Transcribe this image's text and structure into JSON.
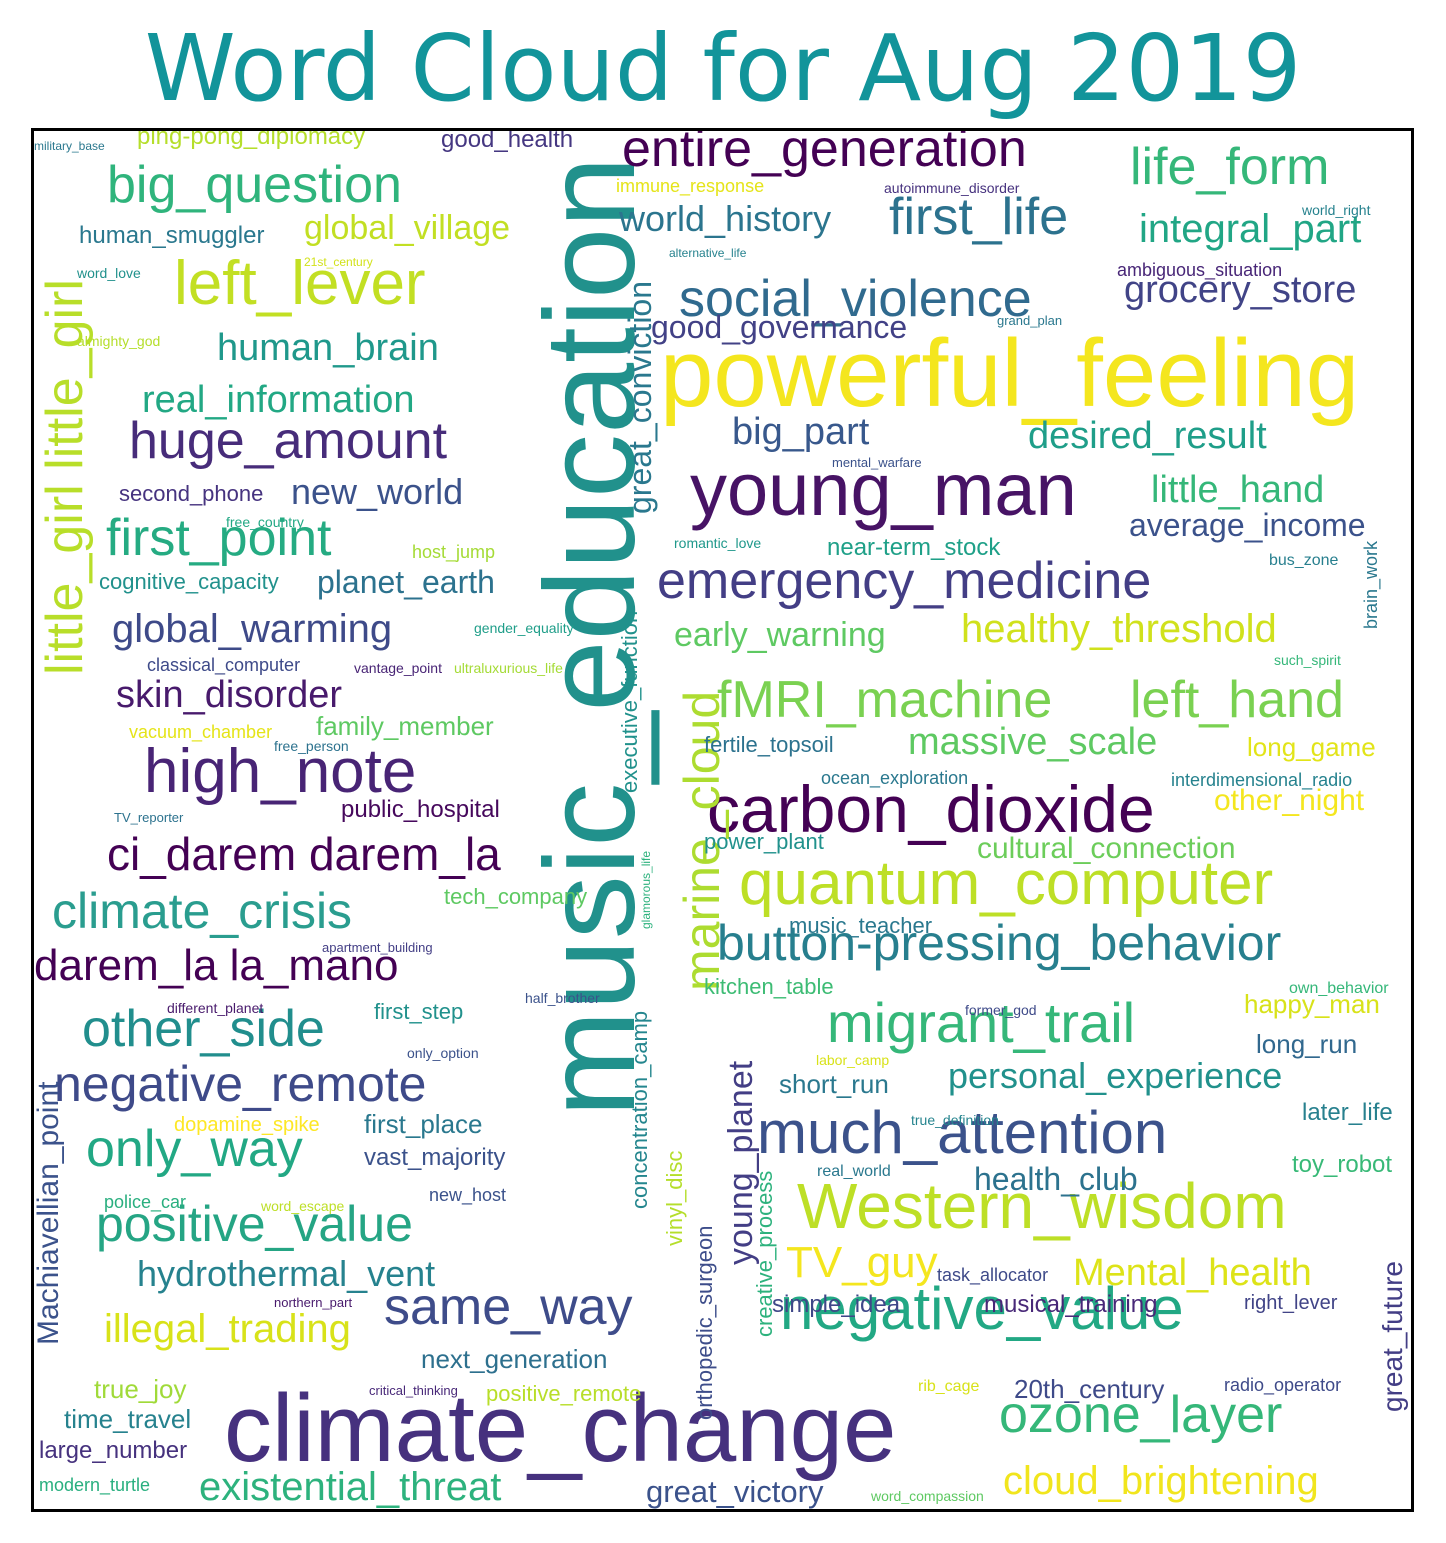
{
  "title": "Word Cloud for Aug 2019",
  "words": [
    {
      "text": "music_education",
      "color": "#21918c"
    },
    {
      "text": "climate_change",
      "color": "#46317e"
    },
    {
      "text": "powerful_feeling",
      "color": "#f4e61e"
    },
    {
      "text": "young_man",
      "color": "#471365"
    },
    {
      "text": "carbon_dioxide",
      "color": "#440154"
    },
    {
      "text": "quantum_computer",
      "color": "#bddf26"
    },
    {
      "text": "Western_wisdom",
      "color": "#bddf26"
    },
    {
      "text": "much_attention",
      "color": "#3b528b"
    },
    {
      "text": "negative_value",
      "color": "#22a884"
    },
    {
      "text": "migrant_trail",
      "color": "#35b779"
    },
    {
      "text": "button-pressing_behavior",
      "color": "#277f8e"
    },
    {
      "text": "emergency_medicine",
      "color": "#433e85"
    },
    {
      "text": "fMRI_machine",
      "color": "#7ad151"
    },
    {
      "text": "left_hand",
      "color": "#7ad151"
    },
    {
      "text": "entire_generation",
      "color": "#440154"
    },
    {
      "text": "social_violence",
      "color": "#306a8e"
    },
    {
      "text": "first_life",
      "color": "#2c728e"
    },
    {
      "text": "life_form",
      "color": "#35b779"
    },
    {
      "text": "left_lever",
      "color": "#c2df23"
    },
    {
      "text": "big_question",
      "color": "#2fb47c"
    },
    {
      "text": "huge_amount",
      "color": "#472c7a"
    },
    {
      "text": "high_note",
      "color": "#482475"
    },
    {
      "text": "first_point",
      "color": "#25ab82"
    },
    {
      "text": "little_girl little_girl",
      "color": "#b8de29"
    },
    {
      "text": "ci_darem darem_la",
      "color": "#440154"
    },
    {
      "text": "climate_crisis",
      "color": "#2a9d8f"
    },
    {
      "text": "darem_la la_mano",
      "color": "#440154"
    },
    {
      "text": "other_side",
      "color": "#218e8d"
    },
    {
      "text": "negative_remote",
      "color": "#3e4a89"
    },
    {
      "text": "only_way",
      "color": "#22a884"
    },
    {
      "text": "positive_value",
      "color": "#25a584"
    },
    {
      "text": "same_way",
      "color": "#3e4c8a"
    },
    {
      "text": "ozone_layer",
      "color": "#35b779"
    },
    {
      "text": "cloud_brightening",
      "color": "#f1e51d"
    },
    {
      "text": "marine_cloud",
      "color": "#addc30"
    },
    {
      "text": "young_planet",
      "color": "#433e85"
    },
    {
      "text": "existential_threat",
      "color": "#2db27d"
    },
    {
      "text": "illegal_trading",
      "color": "#d8e219"
    },
    {
      "text": "hydrothermal_vent",
      "color": "#26828e"
    },
    {
      "text": "Mental_health",
      "color": "#dde318"
    },
    {
      "text": "TV_guy",
      "color": "#f4e61e"
    },
    {
      "text": "healthy_threshold",
      "color": "#d0e11c"
    },
    {
      "text": "massive_scale",
      "color": "#5ec962"
    },
    {
      "text": "personal_experience",
      "color": "#21918c"
    },
    {
      "text": "desired_result",
      "color": "#1f9e89"
    },
    {
      "text": "little_hand",
      "color": "#35b779"
    },
    {
      "text": "average_income",
      "color": "#3b528b"
    },
    {
      "text": "grocery_store",
      "color": "#414487"
    },
    {
      "text": "integral_part",
      "color": "#21a685"
    },
    {
      "text": "world_history",
      "color": "#2b758e"
    },
    {
      "text": "good_governance",
      "color": "#424186"
    },
    {
      "text": "big_part",
      "color": "#38588c"
    },
    {
      "text": "early_warning",
      "color": "#5ec962"
    },
    {
      "text": "great_conviction",
      "color": "#2a788e"
    },
    {
      "text": "global_warming",
      "color": "#3e4a89"
    },
    {
      "text": "skin_disorder",
      "color": "#481a6c"
    },
    {
      "text": "human_brain",
      "color": "#1f988b"
    },
    {
      "text": "real_information",
      "color": "#22a884"
    },
    {
      "text": "new_world",
      "color": "#3b528b"
    },
    {
      "text": "planet_earth",
      "color": "#2c728e"
    },
    {
      "text": "global_village",
      "color": "#c2df23"
    },
    {
      "text": "human_smuggler",
      "color": "#2a788e"
    },
    {
      "text": "good_health",
      "color": "#453781"
    },
    {
      "text": "ping-pong_diplomacy",
      "color": "#b5de2b"
    },
    {
      "text": "military_base",
      "color": "#2a788e"
    },
    {
      "text": "great_future",
      "color": "#433e85"
    },
    {
      "text": "Machiavellian_point",
      "color": "#3b528b"
    },
    {
      "text": "cultural_connection",
      "color": "#6ccd5a"
    },
    {
      "text": "other_night",
      "color": "#f4e61e"
    },
    {
      "text": "long_game",
      "color": "#e2e418"
    },
    {
      "text": "happy_man",
      "color": "#d8e219"
    },
    {
      "text": "long_run",
      "color": "#31688e"
    },
    {
      "text": "later_life",
      "color": "#27808e"
    },
    {
      "text": "toy_robot",
      "color": "#38b977"
    },
    {
      "text": "health_club",
      "color": "#2c728e"
    },
    {
      "text": "short_run",
      "color": "#2a788e"
    },
    {
      "text": "next_generation",
      "color": "#2d708e"
    },
    {
      "text": "first_place",
      "color": "#2a788e"
    },
    {
      "text": "vast_majority",
      "color": "#3b528b"
    },
    {
      "text": "true_joy",
      "color": "#a0da39"
    },
    {
      "text": "time_travel",
      "color": "#26828e"
    },
    {
      "text": "large_number",
      "color": "#46327e"
    },
    {
      "text": "modern_turtle",
      "color": "#29af7f"
    },
    {
      "text": "great_victory",
      "color": "#3b528b"
    },
    {
      "text": "20th_century",
      "color": "#3e4a89"
    },
    {
      "text": "musical_training",
      "color": "#482878"
    },
    {
      "text": "simple_idea",
      "color": "#3f4788"
    },
    {
      "text": "right_lever",
      "color": "#414487"
    },
    {
      "text": "positive_remote",
      "color": "#b8de29"
    },
    {
      "text": "creative_process",
      "color": "#2db27d"
    },
    {
      "text": "orthopedic_surgeon",
      "color": "#3d4d8a"
    },
    {
      "text": "concentration_camp",
      "color": "#24868e"
    },
    {
      "text": "vinyl_disc",
      "color": "#b5de2b"
    },
    {
      "text": "executive_function",
      "color": "#21918c"
    },
    {
      "text": "family_member",
      "color": "#5ec962"
    },
    {
      "text": "public_hospital",
      "color": "#46085c"
    },
    {
      "text": "second_phone",
      "color": "#46337f"
    },
    {
      "text": "cognitive_capacity",
      "color": "#21918c"
    },
    {
      "text": "tech_company",
      "color": "#5ec962"
    },
    {
      "text": "first_step",
      "color": "#21918c"
    },
    {
      "text": "fertile_topsoil",
      "color": "#2c728e"
    },
    {
      "text": "power_plant",
      "color": "#21918c"
    },
    {
      "text": "kitchen_table",
      "color": "#3dbc74"
    },
    {
      "text": "music_teacher",
      "color": "#2a788e"
    },
    {
      "text": "near-term_stock",
      "color": "#1fa088"
    },
    {
      "text": "dopamine_spike",
      "color": "#fde725"
    },
    {
      "text": "brain_work",
      "color": "#2a788e"
    },
    {
      "text": "immune_response",
      "color": "#e5e419"
    },
    {
      "text": "autoimmune_disorder",
      "color": "#46317e"
    },
    {
      "text": "alternative_life",
      "color": "#26828e"
    },
    {
      "text": "world_right",
      "color": "#26828e"
    },
    {
      "text": "ambiguous_situation",
      "color": "#482677"
    },
    {
      "text": "21st_century",
      "color": "#d2e21b"
    },
    {
      "text": "word_love",
      "color": "#21918c"
    },
    {
      "text": "almighty_god",
      "color": "#b5de2b"
    },
    {
      "text": "grand_plan",
      "color": "#2a788e"
    },
    {
      "text": "mental_warfare",
      "color": "#3b528b"
    },
    {
      "text": "free_country",
      "color": "#22a884"
    },
    {
      "text": "host_jump",
      "color": "#a5db36"
    },
    {
      "text": "romantic_love",
      "color": "#1f988b"
    },
    {
      "text": "bus_zone",
      "color": "#277f8e"
    },
    {
      "text": "gender_equality",
      "color": "#1f9e89"
    },
    {
      "text": "classical_computer",
      "color": "#3e4a89"
    },
    {
      "text": "vantage_point",
      "color": "#482475"
    },
    {
      "text": "ultraluxurious_life",
      "color": "#a5db36"
    },
    {
      "text": "such_spirit",
      "color": "#35b779"
    },
    {
      "text": "vacuum_chamber",
      "color": "#e5e419"
    },
    {
      "text": "free_person",
      "color": "#2c728e"
    },
    {
      "text": "ocean_exploration",
      "color": "#2a788e"
    },
    {
      "text": "interdimensional_radio",
      "color": "#26828e"
    },
    {
      "text": "TV_reporter",
      "color": "#2c728e"
    },
    {
      "text": "glamorous_life",
      "color": "#2db27d"
    },
    {
      "text": "apartment_building",
      "color": "#433e85"
    },
    {
      "text": "half_brother",
      "color": "#3b528b"
    },
    {
      "text": "former_god",
      "color": "#3e4a89"
    },
    {
      "text": "own_behavior",
      "color": "#35b779"
    },
    {
      "text": "different_planet",
      "color": "#481a6c"
    },
    {
      "text": "only_option",
      "color": "#3b528b"
    },
    {
      "text": "labor_camp",
      "color": "#d8e219"
    },
    {
      "text": "true_definition",
      "color": "#25848e"
    },
    {
      "text": "real_world",
      "color": "#2a788e"
    },
    {
      "text": "police_car",
      "color": "#29af7f"
    },
    {
      "text": "word_escape",
      "color": "#bddf26"
    },
    {
      "text": "new_host",
      "color": "#3b528b"
    },
    {
      "text": "northern_part",
      "color": "#481a6c"
    },
    {
      "text": "task_allocator",
      "color": "#3e4a89"
    },
    {
      "text": "critical_thinking",
      "color": "#482878"
    },
    {
      "text": "rib_cage",
      "color": "#d8e219"
    },
    {
      "text": "radio_operator",
      "color": "#3e4a89"
    },
    {
      "text": "word_compassion",
      "color": "#5ec962"
    }
  ]
}
